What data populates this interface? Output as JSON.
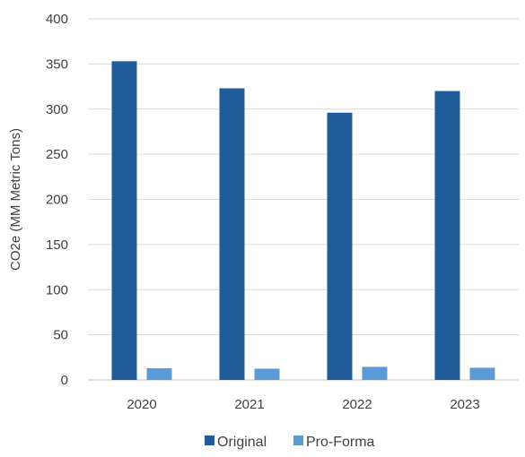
{
  "chart_data": {
    "type": "bar",
    "categories": [
      "2020",
      "2021",
      "2022",
      "2023"
    ],
    "series": [
      {
        "name": "Original",
        "values": [
          353,
          323,
          296,
          320
        ],
        "color": "#1f5c99"
      },
      {
        "name": "Pro-Forma",
        "values": [
          13,
          12.5,
          14.5,
          13.5
        ],
        "color": "#5b9bd5"
      }
    ],
    "ylabel": "CO2e  (MM Metric Tons)",
    "xlabel": "",
    "ylim": [
      0,
      400
    ],
    "yticks": [
      0,
      50,
      100,
      150,
      200,
      250,
      300,
      350,
      400
    ],
    "grid": true,
    "legend": "bottom-center"
  }
}
